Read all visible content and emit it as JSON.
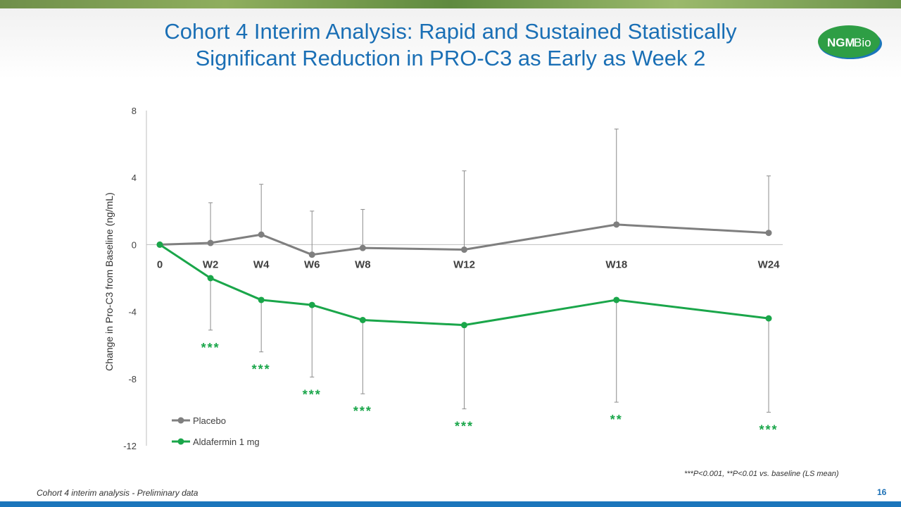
{
  "slide": {
    "title_line1": "Cohort 4 Interim Analysis:  Rapid and Sustained Statistically",
    "title_line2": "Significant Reduction in PRO-C3 as Early as Week 2",
    "logo_text_bold": "NGM",
    "logo_text_light": "Bio",
    "footnote": "***P<0.001, **P<0.01 vs. baseline (LS mean)",
    "footer_left": "Cohort 4 interim analysis - Preliminary data",
    "page_number": "16"
  },
  "colors": {
    "title": "#1a6fb5",
    "placebo": "#7f7f7f",
    "aldafermin": "#1aa64a",
    "logo_green": "#2e9e45",
    "footer_band": "#1b75bb"
  },
  "chart_data": {
    "type": "line",
    "ylabel": "Change in Pro-C3 from Baseline (ng/mL)",
    "xlabel": "",
    "ylim": [
      -12,
      8
    ],
    "yticks": [
      8,
      4,
      0,
      -4,
      -8,
      -12
    ],
    "x": [
      0,
      2,
      4,
      6,
      8,
      12,
      18,
      24
    ],
    "x_labels": [
      "0",
      "W2",
      "W4",
      "W6",
      "W8",
      "W12",
      "W18",
      "W24"
    ],
    "grid": false,
    "legend_position": "bottom-left",
    "series": [
      {
        "name": "Placebo",
        "values": [
          0,
          0.1,
          0.6,
          -0.6,
          -0.2,
          -0.3,
          1.2,
          0.7
        ],
        "error_bar_high": [
          null,
          2.5,
          3.6,
          2.0,
          2.1,
          4.4,
          6.9,
          4.1
        ]
      },
      {
        "name": "Aldafermin 1 mg",
        "values": [
          0,
          -2.0,
          -3.3,
          -3.6,
          -4.5,
          -4.8,
          -3.3,
          -4.4
        ],
        "error_bar_low": [
          null,
          -5.1,
          -6.4,
          -7.9,
          -8.9,
          -9.8,
          -9.4,
          -10.0
        ],
        "significance": [
          null,
          "***",
          "***",
          "***",
          "***",
          "***",
          "**",
          "***"
        ]
      }
    ]
  }
}
